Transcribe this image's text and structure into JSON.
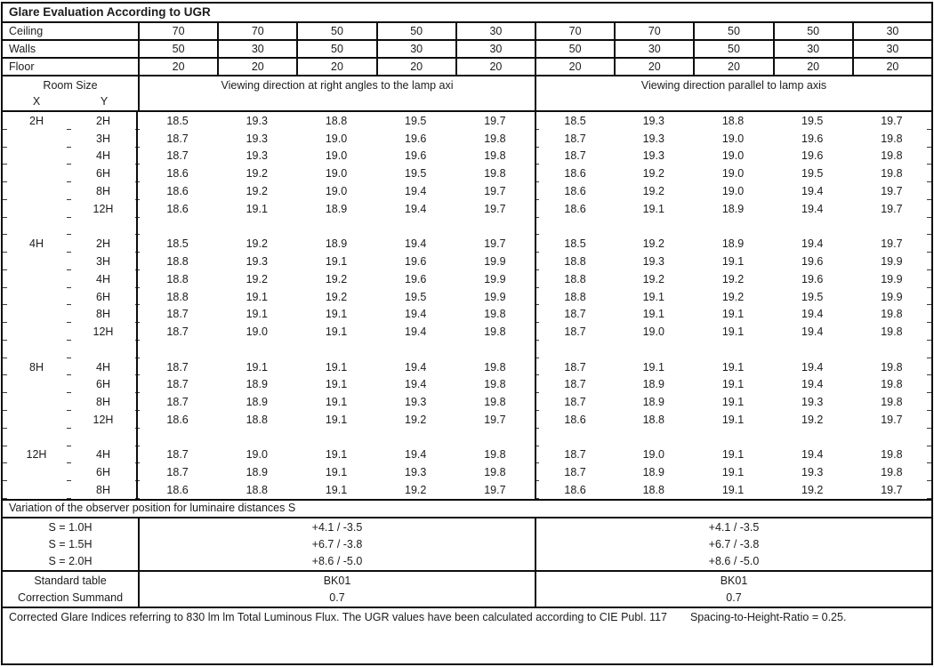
{
  "title": "Glare Evaluation According to UGR",
  "header": {
    "room_size": "Room Size",
    "x": "X",
    "y": "Y",
    "left_heading": "Viewing direction at right angles to the lamp axi",
    "right_heading": "Viewing direction parallel to lamp axis"
  },
  "surface_rows": [
    {
      "label": "Ceiling",
      "values": [
        "70",
        "70",
        "50",
        "50",
        "30",
        "70",
        "70",
        "50",
        "50",
        "30"
      ]
    },
    {
      "label": "Walls",
      "values": [
        "50",
        "30",
        "50",
        "30",
        "30",
        "50",
        "30",
        "50",
        "30",
        "30"
      ]
    },
    {
      "label": "Floor",
      "values": [
        "20",
        "20",
        "20",
        "20",
        "20",
        "20",
        "20",
        "20",
        "20",
        "20"
      ]
    }
  ],
  "blocks": [
    {
      "x": "2H",
      "rows": [
        {
          "y": "2H",
          "values": [
            "18.5",
            "19.3",
            "18.8",
            "19.5",
            "19.7",
            "18.5",
            "19.3",
            "18.8",
            "19.5",
            "19.7"
          ]
        },
        {
          "y": "3H",
          "values": [
            "18.7",
            "19.3",
            "19.0",
            "19.6",
            "19.8",
            "18.7",
            "19.3",
            "19.0",
            "19.6",
            "19.8"
          ]
        },
        {
          "y": "4H",
          "values": [
            "18.7",
            "19.3",
            "19.0",
            "19.6",
            "19.8",
            "18.7",
            "19.3",
            "19.0",
            "19.6",
            "19.8"
          ]
        },
        {
          "y": "6H",
          "values": [
            "18.6",
            "19.2",
            "19.0",
            "19.5",
            "19.8",
            "18.6",
            "19.2",
            "19.0",
            "19.5",
            "19.8"
          ]
        },
        {
          "y": "8H",
          "values": [
            "18.6",
            "19.2",
            "19.0",
            "19.4",
            "19.7",
            "18.6",
            "19.2",
            "19.0",
            "19.4",
            "19.7"
          ]
        },
        {
          "y": "12H",
          "values": [
            "18.6",
            "19.1",
            "18.9",
            "19.4",
            "19.7",
            "18.6",
            "19.1",
            "18.9",
            "19.4",
            "19.7"
          ]
        }
      ]
    },
    {
      "x": "4H",
      "rows": [
        {
          "y": "2H",
          "values": [
            "18.5",
            "19.2",
            "18.9",
            "19.4",
            "19.7",
            "18.5",
            "19.2",
            "18.9",
            "19.4",
            "19.7"
          ]
        },
        {
          "y": "3H",
          "values": [
            "18.8",
            "19.3",
            "19.1",
            "19.6",
            "19.9",
            "18.8",
            "19.3",
            "19.1",
            "19.6",
            "19.9"
          ]
        },
        {
          "y": "4H",
          "values": [
            "18.8",
            "19.2",
            "19.2",
            "19.6",
            "19.9",
            "18.8",
            "19.2",
            "19.2",
            "19.6",
            "19.9"
          ]
        },
        {
          "y": "6H",
          "values": [
            "18.8",
            "19.1",
            "19.2",
            "19.5",
            "19.9",
            "18.8",
            "19.1",
            "19.2",
            "19.5",
            "19.9"
          ]
        },
        {
          "y": "8H",
          "values": [
            "18.7",
            "19.1",
            "19.1",
            "19.4",
            "19.8",
            "18.7",
            "19.1",
            "19.1",
            "19.4",
            "19.8"
          ]
        },
        {
          "y": "12H",
          "values": [
            "18.7",
            "19.0",
            "19.1",
            "19.4",
            "19.8",
            "18.7",
            "19.0",
            "19.1",
            "19.4",
            "19.8"
          ]
        }
      ]
    },
    {
      "x": "8H",
      "rows": [
        {
          "y": "4H",
          "values": [
            "18.7",
            "19.1",
            "19.1",
            "19.4",
            "19.8",
            "18.7",
            "19.1",
            "19.1",
            "19.4",
            "19.8"
          ]
        },
        {
          "y": "6H",
          "values": [
            "18.7",
            "18.9",
            "19.1",
            "19.4",
            "19.8",
            "18.7",
            "18.9",
            "19.1",
            "19.4",
            "19.8"
          ]
        },
        {
          "y": "8H",
          "values": [
            "18.7",
            "18.9",
            "19.1",
            "19.3",
            "19.8",
            "18.7",
            "18.9",
            "19.1",
            "19.3",
            "19.8"
          ]
        },
        {
          "y": "12H",
          "values": [
            "18.6",
            "18.8",
            "19.1",
            "19.2",
            "19.7",
            "18.6",
            "18.8",
            "19.1",
            "19.2",
            "19.7"
          ]
        }
      ]
    },
    {
      "x": "12H",
      "rows": [
        {
          "y": "4H",
          "values": [
            "18.7",
            "19.0",
            "19.1",
            "19.4",
            "19.8",
            "18.7",
            "19.0",
            "19.1",
            "19.4",
            "19.8"
          ]
        },
        {
          "y": "6H",
          "values": [
            "18.7",
            "18.9",
            "19.1",
            "19.3",
            "19.8",
            "18.7",
            "18.9",
            "19.1",
            "19.3",
            "19.8"
          ]
        },
        {
          "y": "8H",
          "values": [
            "18.6",
            "18.8",
            "19.1",
            "19.2",
            "19.7",
            "18.6",
            "18.8",
            "19.1",
            "19.2",
            "19.7"
          ]
        }
      ]
    }
  ],
  "variation": {
    "heading": "Variation of the observer position for luminaire distances S",
    "rows": [
      {
        "label": "S = 1.0H",
        "left": "+4.1 / -3.5",
        "right": "+4.1 / -3.5"
      },
      {
        "label": "S = 1.5H",
        "left": "+6.7 / -3.8",
        "right": "+6.7 / -3.8"
      },
      {
        "label": "S = 2.0H",
        "left": "+8.6 / -5.0",
        "right": "+8.6 / -5.0"
      }
    ]
  },
  "summary": {
    "rows": [
      {
        "label": "Standard table",
        "left": "BK01",
        "right": "BK01"
      },
      {
        "label": "Correction Summand",
        "left": "0.7",
        "right": "0.7"
      }
    ]
  },
  "footer": {
    "line1": "Corrected Glare Indices referring to 830 lm lm Total Luminous Flux. The UGR values have been calculated according to CIE Publ. 117",
    "line2": "Spacing-to-Height-Ratio = 0.25."
  }
}
